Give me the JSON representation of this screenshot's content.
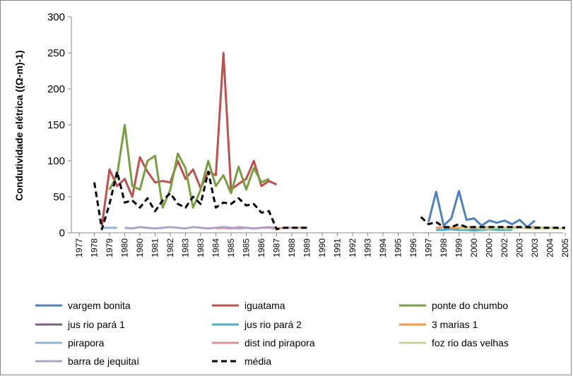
{
  "chart_data": {
    "type": "line",
    "y_label": "Condutividade elétrica ((Ω-m)-1)",
    "ylim": [
      0,
      300
    ],
    "yticks": [
      0,
      50,
      100,
      150,
      200,
      250,
      300
    ],
    "categories": [
      "1977",
      null,
      "1978",
      null,
      "1979",
      null,
      "1980",
      null,
      "1980",
      null,
      "1981",
      null,
      "1982",
      null,
      "1983",
      null,
      "1983",
      null,
      "1984",
      null,
      "1985",
      null,
      "1985",
      null,
      "1986",
      null,
      "1987",
      null,
      "1988",
      null,
      "1989",
      null,
      "1990",
      null,
      "1991",
      null,
      "1992",
      null,
      "1993",
      null,
      "1994",
      null,
      "1995",
      null,
      "1996",
      null,
      "1997",
      null,
      "1998",
      null,
      "1999",
      null,
      "2000",
      null,
      "2000",
      null,
      "2002",
      null,
      "2003",
      null,
      "2003",
      null,
      "2004",
      null,
      "2005",
      null
    ],
    "series": [
      {
        "name": "vargem bonita",
        "color": "#4f81bd",
        "values": [
          null,
          null,
          null,
          null,
          null,
          null,
          null,
          null,
          null,
          null,
          null,
          null,
          null,
          null,
          null,
          null,
          null,
          null,
          null,
          null,
          null,
          null,
          null,
          null,
          null,
          null,
          null,
          null,
          null,
          null,
          null,
          null,
          null,
          null,
          null,
          null,
          null,
          null,
          null,
          null,
          null,
          null,
          null,
          null,
          null,
          null,
          15,
          57,
          10,
          20,
          58,
          18,
          20,
          10,
          17,
          14,
          17,
          12,
          18,
          8,
          17,
          null,
          null,
          null,
          null,
          null
        ]
      },
      {
        "name": "iguatama",
        "color": "#c0504d",
        "values": [
          null,
          null,
          null,
          10,
          88,
          65,
          75,
          50,
          105,
          85,
          70,
          72,
          70,
          100,
          75,
          88,
          62,
          85,
          80,
          250,
          60,
          68,
          75,
          100,
          65,
          72,
          67,
          null,
          null,
          null,
          null,
          null,
          null,
          null,
          null,
          null,
          null,
          null,
          null,
          null,
          null,
          null,
          null,
          null,
          null,
          null,
          null,
          null,
          null,
          null,
          null,
          null,
          null,
          null,
          null,
          null,
          null,
          null,
          null,
          null,
          null,
          null,
          null,
          null,
          null,
          null
        ]
      },
      {
        "name": "ponte do chumbo",
        "color": "#77a040",
        "values": [
          null,
          null,
          78,
          null,
          60,
          80,
          150,
          65,
          60,
          100,
          107,
          35,
          60,
          110,
          90,
          35,
          60,
          100,
          65,
          80,
          55,
          92,
          60,
          90,
          70,
          75,
          null,
          null,
          null,
          null,
          null,
          null,
          null,
          null,
          null,
          null,
          null,
          null,
          null,
          null,
          null,
          null,
          null,
          null,
          null,
          null,
          null,
          null,
          null,
          null,
          null,
          null,
          null,
          null,
          null,
          null,
          null,
          null,
          null,
          null,
          null,
          null,
          null,
          null,
          null,
          null
        ]
      },
      {
        "name": "jus rio pará 1",
        "color": "#7f6084",
        "values": [
          null,
          null,
          null,
          null,
          null,
          null,
          null,
          null,
          null,
          null,
          null,
          null,
          null,
          null,
          null,
          null,
          null,
          null,
          null,
          null,
          null,
          null,
          null,
          null,
          null,
          null,
          null,
          null,
          null,
          null,
          null,
          null,
          null,
          null,
          null,
          null,
          null,
          null,
          null,
          null,
          null,
          null,
          null,
          null,
          null,
          null,
          null,
          null,
          5,
          5,
          4,
          5,
          5,
          4,
          5,
          5,
          4,
          5,
          null,
          null,
          null,
          null,
          null,
          null,
          null,
          null
        ]
      },
      {
        "name": "jus rio pará 2",
        "color": "#4bacc6",
        "values": [
          null,
          null,
          null,
          null,
          null,
          null,
          null,
          null,
          null,
          null,
          null,
          null,
          null,
          null,
          null,
          null,
          null,
          null,
          null,
          null,
          null,
          null,
          null,
          null,
          null,
          null,
          null,
          null,
          null,
          null,
          null,
          null,
          null,
          null,
          null,
          null,
          null,
          null,
          null,
          null,
          null,
          null,
          null,
          null,
          null,
          null,
          null,
          4,
          4,
          5,
          4,
          4,
          3,
          4,
          5,
          4,
          4,
          4,
          null,
          null,
          null,
          null,
          null,
          null,
          null,
          null
        ]
      },
      {
        "name": "3 marias 1",
        "color": "#f79646",
        "values": [
          null,
          null,
          null,
          null,
          null,
          null,
          null,
          null,
          null,
          null,
          null,
          null,
          null,
          null,
          null,
          null,
          null,
          null,
          null,
          null,
          null,
          null,
          null,
          null,
          null,
          null,
          null,
          null,
          null,
          null,
          null,
          null,
          null,
          null,
          null,
          null,
          null,
          null,
          null,
          null,
          null,
          null,
          null,
          null,
          null,
          null,
          null,
          7,
          8,
          7,
          7,
          8,
          7,
          7,
          8,
          7,
          7,
          8,
          7,
          7,
          8,
          7,
          7,
          7,
          null,
          null
        ]
      },
      {
        "name": "pirapora",
        "color": "#95b3d7",
        "values": [
          null,
          null,
          null,
          7,
          7,
          7,
          null,
          null,
          null,
          null,
          null,
          null,
          null,
          null,
          null,
          null,
          null,
          null,
          null,
          null,
          null,
          null,
          null,
          null,
          null,
          null,
          null,
          null,
          null,
          null,
          null,
          null,
          null,
          null,
          null,
          null,
          null,
          null,
          null,
          null,
          null,
          null,
          null,
          null,
          null,
          null,
          null,
          null,
          null,
          null,
          null,
          null,
          null,
          null,
          null,
          null,
          null,
          null,
          null,
          null,
          null,
          null,
          null,
          null,
          null,
          null
        ]
      },
      {
        "name": "dist ind pirapora",
        "color": "#d99694",
        "values": [
          null,
          null,
          null,
          null,
          null,
          null,
          null,
          null,
          null,
          null,
          null,
          null,
          null,
          null,
          null,
          null,
          null,
          null,
          6,
          7,
          6,
          8,
          7,
          6,
          7,
          7,
          6,
          7,
          7,
          7,
          7,
          null,
          null,
          null,
          null,
          null,
          null,
          null,
          null,
          null,
          null,
          null,
          null,
          null,
          null,
          null,
          null,
          null,
          null,
          null,
          null,
          null,
          null,
          null,
          null,
          null,
          null,
          null,
          null,
          null,
          null,
          null,
          null,
          null,
          null,
          null
        ]
      },
      {
        "name": "foz rio das velhas",
        "color": "#c3d69b",
        "values": [
          null,
          null,
          null,
          null,
          null,
          null,
          null,
          null,
          null,
          null,
          null,
          null,
          null,
          null,
          null,
          null,
          null,
          null,
          null,
          null,
          null,
          null,
          null,
          null,
          null,
          null,
          null,
          null,
          null,
          null,
          null,
          null,
          null,
          null,
          null,
          null,
          null,
          null,
          null,
          null,
          null,
          null,
          null,
          null,
          null,
          null,
          null,
          null,
          null,
          null,
          6,
          6,
          7,
          6,
          6,
          7,
          6,
          6,
          7,
          6,
          6,
          6,
          7,
          6,
          6,
          null
        ]
      },
      {
        "name": "barra de jequitaí",
        "color": "#b3a2c7",
        "values": [
          null,
          null,
          null,
          null,
          null,
          null,
          7,
          6,
          8,
          7,
          6,
          7,
          8,
          7,
          6,
          8,
          7,
          6,
          7,
          8,
          7,
          6,
          7,
          6,
          7,
          8,
          7,
          null,
          null,
          null,
          null,
          null,
          null,
          null,
          null,
          null,
          null,
          null,
          null,
          null,
          null,
          null,
          null,
          null,
          null,
          null,
          null,
          null,
          null,
          null,
          null,
          null,
          null,
          null,
          null,
          null,
          null,
          null,
          null,
          null,
          null,
          null,
          null,
          null,
          null,
          null
        ]
      },
      {
        "name": "média",
        "color": "#000000",
        "dashed": true,
        "values": [
          null,
          null,
          70,
          5,
          40,
          85,
          42,
          45,
          35,
          48,
          30,
          45,
          55,
          40,
          35,
          50,
          40,
          85,
          35,
          42,
          40,
          48,
          38,
          40,
          28,
          30,
          5,
          7,
          7,
          7,
          7,
          null,
          null,
          null,
          null,
          null,
          null,
          null,
          null,
          null,
          null,
          null,
          null,
          null,
          null,
          22,
          12,
          15,
          8,
          8,
          12,
          8,
          8,
          8,
          8,
          8,
          8,
          8,
          8,
          8,
          7,
          7,
          7,
          7,
          7,
          null
        ]
      }
    ]
  }
}
